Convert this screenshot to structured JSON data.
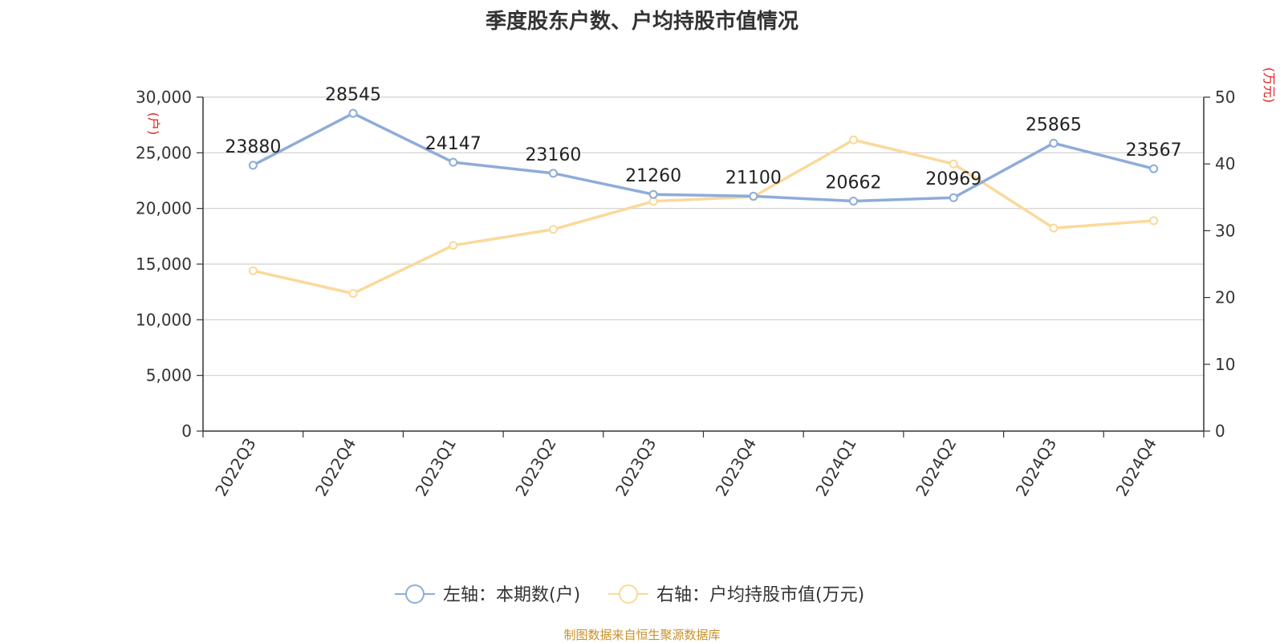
{
  "chart_data": {
    "type": "line",
    "title": "季度股东户数、户均持股市值情况",
    "categories": [
      "2022Q3",
      "2022Q4",
      "2023Q1",
      "2023Q2",
      "2023Q3",
      "2023Q4",
      "2024Q1",
      "2024Q2",
      "2024Q3",
      "2024Q4"
    ],
    "y_left": {
      "unit": "(户)",
      "range": [
        0,
        30000
      ],
      "ticks": [
        "0",
        "5,000",
        "10,000",
        "15,000",
        "20,000",
        "25,000",
        "30,000"
      ]
    },
    "y_right": {
      "unit": "(万元)",
      "range": [
        0,
        50
      ],
      "ticks": [
        "0",
        "10",
        "20",
        "30",
        "40",
        "50"
      ]
    },
    "series": [
      {
        "name": "左轴：本期数(户)",
        "axis": "left",
        "color": "#8eacd8",
        "values": [
          23880,
          28545,
          24147,
          23160,
          21260,
          21100,
          20662,
          20969,
          25865,
          23567
        ],
        "labels": [
          "23880",
          "28545",
          "24147",
          "23160",
          "21260",
          "21100",
          "20662",
          "20969",
          "25865",
          "23567"
        ]
      },
      {
        "name": "右轴：户均持股市值(万元)",
        "axis": "right",
        "color": "#fad99b",
        "values": [
          24.0,
          20.6,
          27.8,
          30.2,
          34.4,
          35.1,
          43.6,
          40.0,
          30.4,
          31.5
        ]
      }
    ],
    "grid": true,
    "legend_position": "bottom"
  },
  "source": "制图数据来自恒生聚源数据库"
}
